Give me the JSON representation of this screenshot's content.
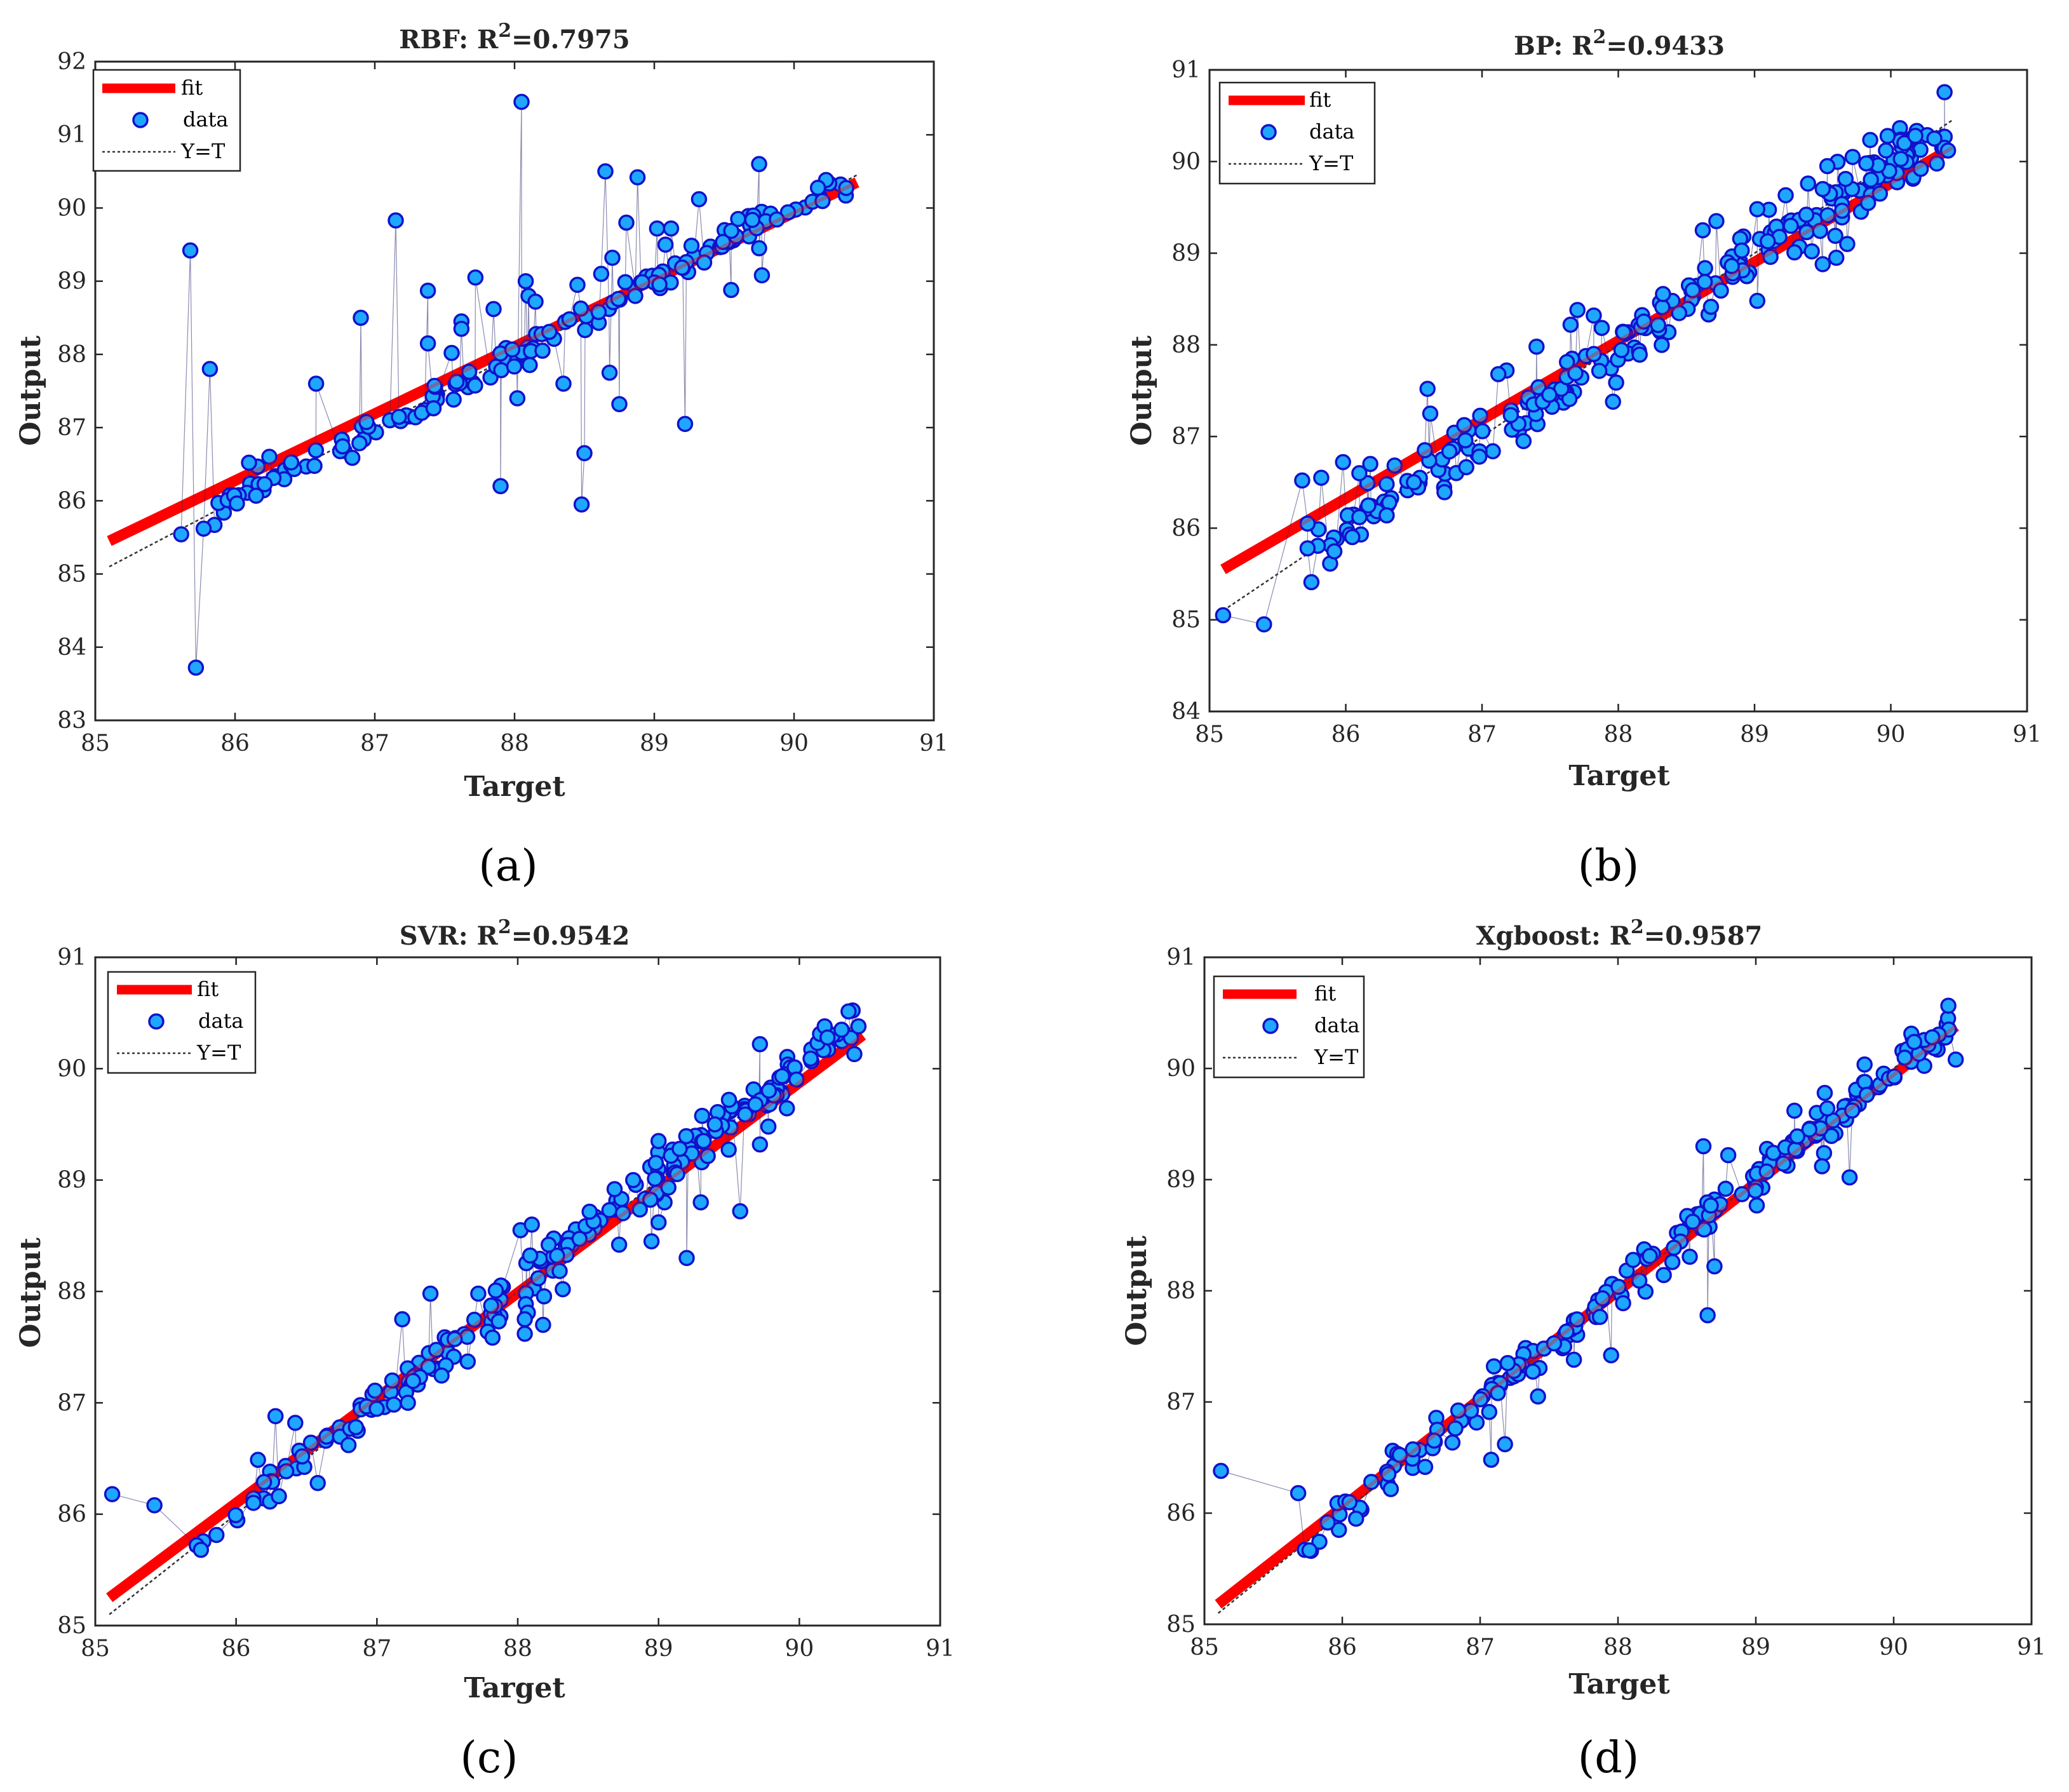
{
  "colors": {
    "fit": "#ff0000",
    "marker_fill": "#1ea7ff",
    "marker_edge": "#1111cc",
    "identity": "#333333",
    "axis": "#262626"
  },
  "chart_data": [
    {
      "type": "scatter",
      "panel_label": "(a)",
      "title": "RBF: R",
      "title_sup": "2",
      "title_value": "=0.7975",
      "xlabel": "Target",
      "ylabel": "Output",
      "xlim": [
        85,
        91
      ],
      "ylim": [
        83,
        92
      ],
      "xticks": [
        "85",
        "86",
        "87",
        "88",
        "89",
        "90",
        "91"
      ],
      "yticks": [
        "83",
        "84",
        "85",
        "86",
        "87",
        "88",
        "89",
        "90",
        "91",
        "92"
      ],
      "legend": [
        "fit",
        "data",
        "Y=T"
      ],
      "fit": {
        "x": [
          85.1,
          90.45
        ],
        "y": [
          85.45,
          90.35
        ]
      },
      "identity": {
        "x": [
          85.1,
          90.45
        ],
        "y": [
          85.1,
          90.45
        ]
      },
      "outliers": [
        [
          85.68,
          89.42
        ],
        [
          85.72,
          83.72
        ],
        [
          85.82,
          87.8
        ],
        [
          86.1,
          86.52
        ],
        [
          86.58,
          87.6
        ],
        [
          86.9,
          88.5
        ],
        [
          87.15,
          89.83
        ],
        [
          87.38,
          88.87
        ],
        [
          87.38,
          88.15
        ],
        [
          87.55,
          88.02
        ],
        [
          87.72,
          89.05
        ],
        [
          87.62,
          88.45
        ],
        [
          87.62,
          88.35
        ],
        [
          87.85,
          88.62
        ],
        [
          87.9,
          86.2
        ],
        [
          88.02,
          87.4
        ],
        [
          88.05,
          91.45
        ],
        [
          88.08,
          89.0
        ],
        [
          88.1,
          88.8
        ],
        [
          88.15,
          88.72
        ],
        [
          88.2,
          88.05
        ],
        [
          88.35,
          87.6
        ],
        [
          88.45,
          88.95
        ],
        [
          88.48,
          85.95
        ],
        [
          88.5,
          86.65
        ],
        [
          88.62,
          89.1
        ],
        [
          88.65,
          90.5
        ],
        [
          88.68,
          87.75
        ],
        [
          88.7,
          89.32
        ],
        [
          88.75,
          87.32
        ],
        [
          88.8,
          89.8
        ],
        [
          88.88,
          90.42
        ],
        [
          89.02,
          89.72
        ],
        [
          89.08,
          89.5
        ],
        [
          89.12,
          89.72
        ],
        [
          89.22,
          87.05
        ],
        [
          89.32,
          90.12
        ],
        [
          89.55,
          88.88
        ],
        [
          89.75,
          90.6
        ],
        [
          89.77,
          89.08
        ],
        [
          89.6,
          89.85
        ],
        [
          89.75,
          89.45
        ]
      ],
      "count_near_line": 150,
      "seed": 11,
      "spread": 0.1
    },
    {
      "type": "scatter",
      "panel_label": "(b)",
      "title": "BP: R",
      "title_sup": "2",
      "title_value": "=0.9433",
      "xlabel": "Target",
      "ylabel": "Output",
      "xlim": [
        85,
        91
      ],
      "ylim": [
        84,
        91
      ],
      "xticks": [
        "85",
        "86",
        "87",
        "88",
        "89",
        "90",
        "91"
      ],
      "yticks": [
        "84",
        "85",
        "86",
        "87",
        "88",
        "89",
        "90",
        "91"
      ],
      "legend": [
        "fit",
        "data",
        "Y=T"
      ],
      "fit": {
        "x": [
          85.1,
          90.45
        ],
        "y": [
          85.55,
          90.15
        ]
      },
      "identity": {
        "x": [
          85.1,
          90.45
        ],
        "y": [
          85.1,
          90.45
        ]
      },
      "outliers": [
        [
          85.1,
          85.05
        ],
        [
          85.4,
          84.95
        ],
        [
          85.68,
          86.52
        ],
        [
          85.72,
          86.05
        ],
        [
          85.72,
          85.78
        ],
        [
          85.82,
          86.55
        ],
        [
          85.98,
          86.72
        ],
        [
          86.1,
          86.6
        ],
        [
          86.1,
          86.12
        ],
        [
          86.18,
          86.7
        ],
        [
          86.3,
          86.48
        ],
        [
          86.5,
          86.5
        ],
        [
          86.6,
          87.52
        ],
        [
          86.62,
          87.25
        ],
        [
          86.58,
          86.85
        ],
        [
          86.98,
          86.78
        ],
        [
          87.18,
          87.72
        ],
        [
          87.12,
          87.68
        ],
        [
          87.4,
          87.98
        ],
        [
          87.65,
          88.22
        ],
        [
          87.7,
          88.38
        ],
        [
          87.82,
          88.32
        ],
        [
          87.82,
          87.9
        ],
        [
          88.62,
          89.25
        ],
        [
          88.72,
          89.35
        ],
        [
          89.02,
          89.48
        ],
        [
          89.02,
          88.48
        ],
        [
          89.38,
          89.42
        ],
        [
          89.42,
          89.02
        ],
        [
          89.5,
          88.88
        ],
        [
          89.5,
          89.7
        ],
        [
          89.6,
          88.95
        ],
        [
          89.68,
          89.1
        ],
        [
          89.72,
          90.05
        ],
        [
          89.82,
          89.98
        ],
        [
          89.92,
          89.65
        ],
        [
          90.1,
          90.2
        ],
        [
          90.18,
          90.28
        ],
        [
          90.22,
          89.92
        ],
        [
          90.32,
          90.25
        ],
        [
          90.42,
          90.12
        ]
      ],
      "count_near_line": 230,
      "seed": 23,
      "spread": 0.16
    },
    {
      "type": "scatter",
      "panel_label": "(c)",
      "title": "SVR: R",
      "title_sup": "2",
      "title_value": "=0.9542",
      "xlabel": "Target",
      "ylabel": "Output",
      "xlim": [
        85,
        91
      ],
      "ylim": [
        85,
        91
      ],
      "xticks": [
        "85",
        "86",
        "87",
        "88",
        "89",
        "90",
        "91"
      ],
      "yticks": [
        "85",
        "86",
        "87",
        "88",
        "89",
        "90",
        "91"
      ],
      "legend": [
        "fit",
        "data",
        "Y=T"
      ],
      "fit": {
        "x": [
          85.1,
          90.45
        ],
        "y": [
          85.25,
          90.3
        ]
      },
      "identity": {
        "x": [
          85.1,
          90.45
        ],
        "y": [
          85.1,
          90.45
        ]
      },
      "outliers": [
        [
          85.12,
          86.18
        ],
        [
          85.42,
          86.08
        ],
        [
          85.72,
          85.72
        ],
        [
          85.75,
          85.68
        ],
        [
          86.28,
          86.88
        ],
        [
          86.42,
          86.82
        ],
        [
          86.58,
          86.28
        ],
        [
          87.18,
          87.75
        ],
        [
          87.22,
          87.0
        ],
        [
          87.38,
          87.98
        ],
        [
          87.72,
          87.98
        ],
        [
          88.02,
          88.55
        ],
        [
          88.1,
          88.6
        ],
        [
          88.05,
          87.62
        ],
        [
          88.05,
          87.75
        ],
        [
          88.18,
          87.7
        ],
        [
          88.32,
          88.02
        ],
        [
          88.72,
          88.42
        ],
        [
          88.82,
          89.0
        ],
        [
          88.95,
          88.45
        ],
        [
          89.0,
          89.35
        ],
        [
          89.0,
          88.62
        ],
        [
          89.15,
          89.28
        ],
        [
          89.2,
          88.3
        ],
        [
          89.3,
          88.8
        ],
        [
          89.32,
          89.35
        ],
        [
          89.4,
          89.5
        ],
        [
          89.5,
          89.72
        ],
        [
          89.58,
          88.72
        ],
        [
          89.72,
          90.22
        ],
        [
          89.72,
          89.32
        ],
        [
          89.78,
          89.48
        ],
        [
          90.18,
          90.38
        ],
        [
          90.2,
          90.28
        ],
        [
          90.3,
          90.35
        ],
        [
          90.42,
          90.38
        ]
      ],
      "count_near_line": 220,
      "seed": 37,
      "spread": 0.11
    },
    {
      "type": "scatter",
      "panel_label": "(d)",
      "title": "Xgboost: R",
      "title_sup": "2",
      "title_value": "=0.9587",
      "xlabel": "Target",
      "ylabel": "Output",
      "xlim": [
        85,
        91
      ],
      "ylim": [
        85,
        91
      ],
      "xticks": [
        "85",
        "86",
        "87",
        "88",
        "89",
        "90",
        "91"
      ],
      "yticks": [
        "85",
        "86",
        "87",
        "88",
        "89",
        "90",
        "91"
      ],
      "legend": [
        "fit",
        "data",
        "Y=T"
      ],
      "fit": {
        "x": [
          85.1,
          90.45
        ],
        "y": [
          85.18,
          90.38
        ]
      },
      "identity": {
        "x": [
          85.1,
          90.45
        ],
        "y": [
          85.1,
          90.45
        ]
      },
      "outliers": [
        [
          85.12,
          86.38
        ],
        [
          85.68,
          86.18
        ],
        [
          86.1,
          85.95
        ],
        [
          87.08,
          86.48
        ],
        [
          87.1,
          87.32
        ],
        [
          87.18,
          86.62
        ],
        [
          87.2,
          87.35
        ],
        [
          87.42,
          87.05
        ],
        [
          87.68,
          87.38
        ],
        [
          87.95,
          87.42
        ],
        [
          88.62,
          89.3
        ],
        [
          88.65,
          87.78
        ],
        [
          88.7,
          88.22
        ],
        [
          88.8,
          89.22
        ],
        [
          89.28,
          89.62
        ],
        [
          89.48,
          89.12
        ],
        [
          89.5,
          89.78
        ],
        [
          89.68,
          89.02
        ],
        [
          90.45,
          90.08
        ],
        [
          90.28,
          90.28
        ]
      ],
      "count_near_line": 200,
      "seed": 53,
      "spread": 0.09
    }
  ]
}
